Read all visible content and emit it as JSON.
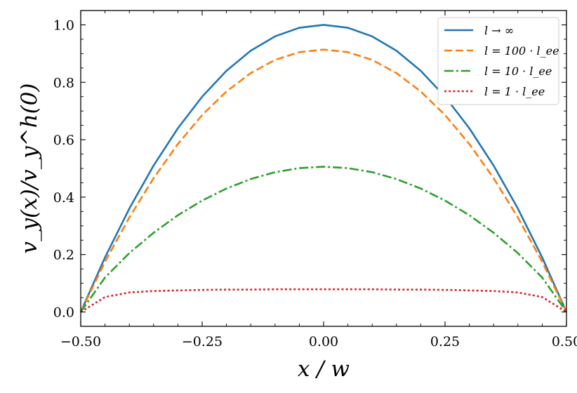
{
  "chart_data": {
    "type": "line",
    "title": "",
    "xlabel": "x / w",
    "ylabel": "v_y(x)/v_y^h(0)",
    "xlim": [
      -0.5,
      0.5
    ],
    "ylim": [
      -0.05,
      1.05
    ],
    "x_ticks": [
      -0.5,
      -0.25,
      0,
      0.25,
      0.5
    ],
    "x_tick_labels": [
      "−0.50",
      "−0.25",
      "0.00",
      "0.25",
      "0.50"
    ],
    "y_ticks": [
      0,
      0.2,
      0.4,
      0.6,
      0.8,
      1.0
    ],
    "y_tick_labels": [
      "0.0",
      "0.2",
      "0.4",
      "0.6",
      "0.8",
      "1.0"
    ],
    "grid": false,
    "legend_position": "top-right",
    "x": [
      -0.5,
      -0.45,
      -0.4,
      -0.35,
      -0.3,
      -0.25,
      -0.2,
      -0.15,
      -0.1,
      -0.05,
      0,
      0.05,
      0.1,
      0.15,
      0.2,
      0.25,
      0.3,
      0.35,
      0.4,
      0.45,
      0.5
    ],
    "series": [
      {
        "name": "l → ∞",
        "color": "#1f77b4",
        "dash": "solid",
        "values": [
          0,
          0.19,
          0.36,
          0.51,
          0.64,
          0.75,
          0.84,
          0.91,
          0.96,
          0.99,
          1.0,
          0.99,
          0.96,
          0.91,
          0.84,
          0.75,
          0.64,
          0.51,
          0.36,
          0.19,
          0
        ]
      },
      {
        "name": "l = 100 · l_ee",
        "color": "#ff7f0e",
        "dash": "dashed",
        "values": [
          0,
          0.175,
          0.329,
          0.466,
          0.585,
          0.686,
          0.768,
          0.832,
          0.878,
          0.905,
          0.914,
          0.905,
          0.878,
          0.832,
          0.768,
          0.686,
          0.585,
          0.466,
          0.329,
          0.175,
          0
        ]
      },
      {
        "name": "l = 10 · l_ee",
        "color": "#2ca02c",
        "dash": "dashdot",
        "values": [
          0,
          0.12,
          0.205,
          0.276,
          0.337,
          0.388,
          0.43,
          0.463,
          0.487,
          0.501,
          0.506,
          0.501,
          0.487,
          0.463,
          0.43,
          0.388,
          0.337,
          0.276,
          0.205,
          0.12,
          0
        ]
      },
      {
        "name": "l = 1 · l_ee",
        "color": "#d62728",
        "dash": "dotted",
        "values": [
          0,
          0.052,
          0.068,
          0.073,
          0.075,
          0.077,
          0.078,
          0.078,
          0.079,
          0.079,
          0.079,
          0.079,
          0.079,
          0.078,
          0.078,
          0.077,
          0.075,
          0.073,
          0.068,
          0.052,
          0
        ]
      }
    ]
  }
}
